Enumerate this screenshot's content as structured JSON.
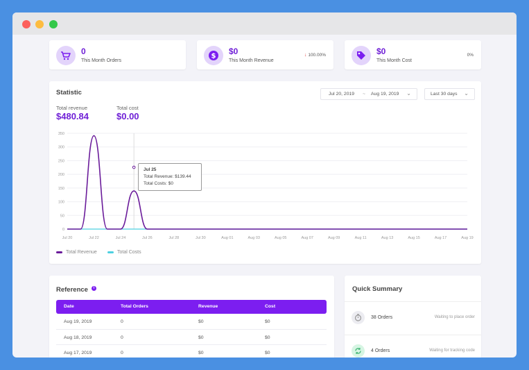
{
  "window": {
    "controls": [
      "close",
      "minimize",
      "maximize"
    ]
  },
  "stats": [
    {
      "value": "0",
      "label": "This Month Orders",
      "change": "",
      "icon": "cart-icon"
    },
    {
      "value": "$0",
      "label": "This Month Revenue",
      "change": "100.00%",
      "change_direction": "down",
      "icon": "dollar-icon"
    },
    {
      "value": "$0",
      "label": "This Month Cost",
      "change": "0%",
      "icon": "tag-icon"
    }
  ],
  "statistic": {
    "title": "Statistic",
    "date_from": "Jul 20, 2019",
    "date_to": "Aug 19, 2019",
    "date_separator": "~",
    "range_select": "Last 30 days",
    "total_revenue_label": "Total revenue",
    "total_revenue_value": "$480.84",
    "total_cost_label": "Total cost",
    "total_cost_value": "$0.00"
  },
  "chart_data": {
    "type": "line",
    "x_labels": [
      "Jul 20",
      "Jul 22",
      "Jul 24",
      "Jul 26",
      "Jul 28",
      "Jul 30",
      "Aug 01",
      "Aug 03",
      "Aug 05",
      "Aug 07",
      "Aug 09",
      "Aug 11",
      "Aug 13",
      "Aug 15",
      "Aug 17",
      "Aug 19"
    ],
    "y_ticks": [
      0,
      50,
      100,
      150,
      200,
      250,
      300,
      350
    ],
    "ylim": [
      0,
      350
    ],
    "x": [
      "Jul 20",
      "Jul 21",
      "Jul 22",
      "Jul 23",
      "Jul 24",
      "Jul 25",
      "Jul 26",
      "Jul 27",
      "Jul 28",
      "Jul 29",
      "Jul 30",
      "Jul 31",
      "Aug 01",
      "Aug 02",
      "Aug 03",
      "Aug 04",
      "Aug 05",
      "Aug 06",
      "Aug 07",
      "Aug 08",
      "Aug 09",
      "Aug 10",
      "Aug 11",
      "Aug 12",
      "Aug 13",
      "Aug 14",
      "Aug 15",
      "Aug 16",
      "Aug 17",
      "Aug 18",
      "Aug 19"
    ],
    "series": [
      {
        "name": "Total Revenue",
        "color": "#6a1b9a",
        "values": [
          0,
          0,
          341.4,
          0,
          0,
          139.44,
          0,
          0,
          0,
          0,
          0,
          0,
          0,
          0,
          0,
          0,
          0,
          0,
          0,
          0,
          0,
          0,
          0,
          0,
          0,
          0,
          0,
          0,
          0,
          0,
          0
        ]
      },
      {
        "name": "Total Costs",
        "color": "#4dd0e1",
        "values": [
          0,
          0,
          0,
          0,
          0,
          0,
          0,
          0,
          0,
          0,
          0,
          0,
          0,
          0,
          0,
          0,
          0,
          0,
          0,
          0,
          0,
          0,
          0,
          0,
          0,
          0,
          0,
          0,
          0,
          0,
          0
        ]
      }
    ],
    "tooltip": {
      "title": "Jul 25",
      "revenue": "Total Revenue: $139.44",
      "costs": "Total Costs: $0"
    },
    "legend": "bottom-left",
    "grid": true
  },
  "reference": {
    "title": "Reference",
    "columns": [
      "Date",
      "Total Orders",
      "Revenue",
      "Cost"
    ],
    "rows": [
      [
        "Aug 19, 2019",
        "0",
        "$0",
        "$0"
      ],
      [
        "Aug 18, 2019",
        "0",
        "$0",
        "$0"
      ],
      [
        "Aug 17, 2019",
        "0",
        "$0",
        "$0"
      ]
    ]
  },
  "quick_summary": {
    "title": "Quick Summary",
    "items": [
      {
        "count": "38 Orders",
        "status": "Waiting to place order",
        "icon": "timer-icon"
      },
      {
        "count": "4 Orders",
        "status": "Waiting for tracking code",
        "icon": "refresh-icon"
      }
    ]
  }
}
